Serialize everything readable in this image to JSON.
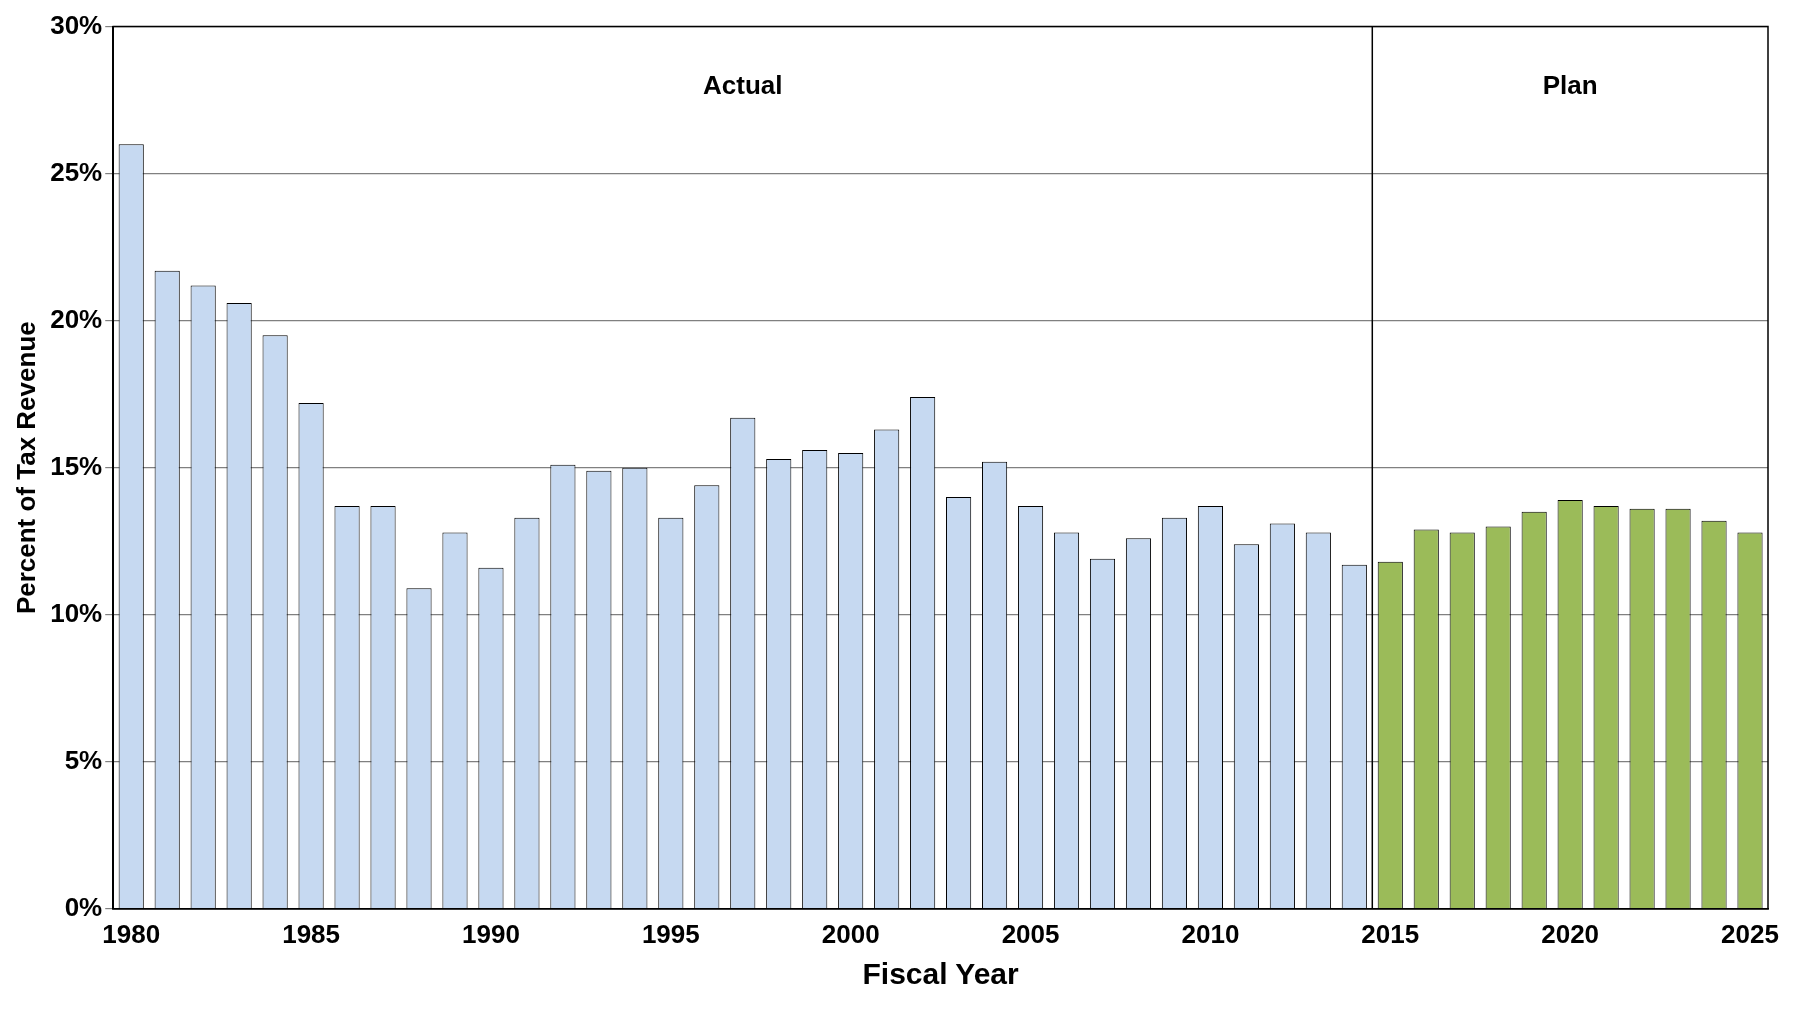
{
  "chart_data": {
    "type": "bar",
    "xlabel": "Fiscal Year",
    "ylabel": "Percent of Tax Revenue",
    "x": [
      1980,
      1981,
      1982,
      1983,
      1984,
      1985,
      1986,
      1987,
      1988,
      1989,
      1990,
      1991,
      1992,
      1993,
      1994,
      1995,
      1996,
      1997,
      1998,
      1999,
      2000,
      2001,
      2002,
      2003,
      2004,
      2005,
      2006,
      2007,
      2008,
      2009,
      2010,
      2011,
      2012,
      2013,
      2014,
      2015,
      2016,
      2017,
      2018,
      2019,
      2020,
      2021,
      2022,
      2023,
      2024,
      2025
    ],
    "values": [
      26.0,
      21.7,
      21.2,
      20.6,
      19.5,
      17.2,
      13.7,
      13.7,
      10.9,
      12.8,
      11.6,
      13.3,
      15.1,
      14.9,
      15.0,
      13.3,
      14.4,
      16.7,
      15.3,
      15.6,
      15.5,
      16.3,
      17.4,
      14.0,
      15.2,
      13.7,
      12.8,
      11.9,
      12.6,
      13.3,
      13.7,
      12.4,
      13.1,
      12.8,
      11.7,
      11.8,
      12.9,
      12.8,
      13.0,
      13.5,
      13.9,
      13.7,
      13.6,
      13.6,
      13.2,
      12.8
    ],
    "colors": [
      "#c6d9f1",
      "#c6d9f1",
      "#c6d9f1",
      "#c6d9f1",
      "#c6d9f1",
      "#c6d9f1",
      "#c6d9f1",
      "#c6d9f1",
      "#c6d9f1",
      "#c6d9f1",
      "#c6d9f1",
      "#c6d9f1",
      "#c6d9f1",
      "#c6d9f1",
      "#c6d9f1",
      "#c6d9f1",
      "#c6d9f1",
      "#c6d9f1",
      "#c6d9f1",
      "#c6d9f1",
      "#c6d9f1",
      "#c6d9f1",
      "#c6d9f1",
      "#c6d9f1",
      "#c6d9f1",
      "#c6d9f1",
      "#c6d9f1",
      "#c6d9f1",
      "#c6d9f1",
      "#c6d9f1",
      "#c6d9f1",
      "#c6d9f1",
      "#c6d9f1",
      "#c6d9f1",
      "#c6d9f1",
      "#9bbb59",
      "#9bbb59",
      "#9bbb59",
      "#9bbb59",
      "#9bbb59",
      "#9bbb59",
      "#9bbb59",
      "#9bbb59",
      "#9bbb59",
      "#9bbb59",
      "#9bbb59"
    ],
    "xlim": [
      1979.5,
      2025.5
    ],
    "xticks": [
      1980,
      1985,
      1990,
      1995,
      2000,
      2005,
      2010,
      2015,
      2020,
      2025
    ],
    "ylim": [
      0,
      30
    ],
    "yticks": [
      {
        "value": 0,
        "label": "0%"
      },
      {
        "value": 5,
        "label": "5%"
      },
      {
        "value": 10,
        "label": "10%"
      },
      {
        "value": 15,
        "label": "15%"
      },
      {
        "value": 20,
        "label": "20%"
      },
      {
        "value": 25,
        "label": "25%"
      },
      {
        "value": 30,
        "label": "30%"
      }
    ],
    "grid": "y",
    "ref_lines": [
      {
        "axis": "x",
        "value": 2014.5,
        "color": "#000000"
      }
    ],
    "annotations": [
      "Actual",
      "Plan"
    ]
  }
}
